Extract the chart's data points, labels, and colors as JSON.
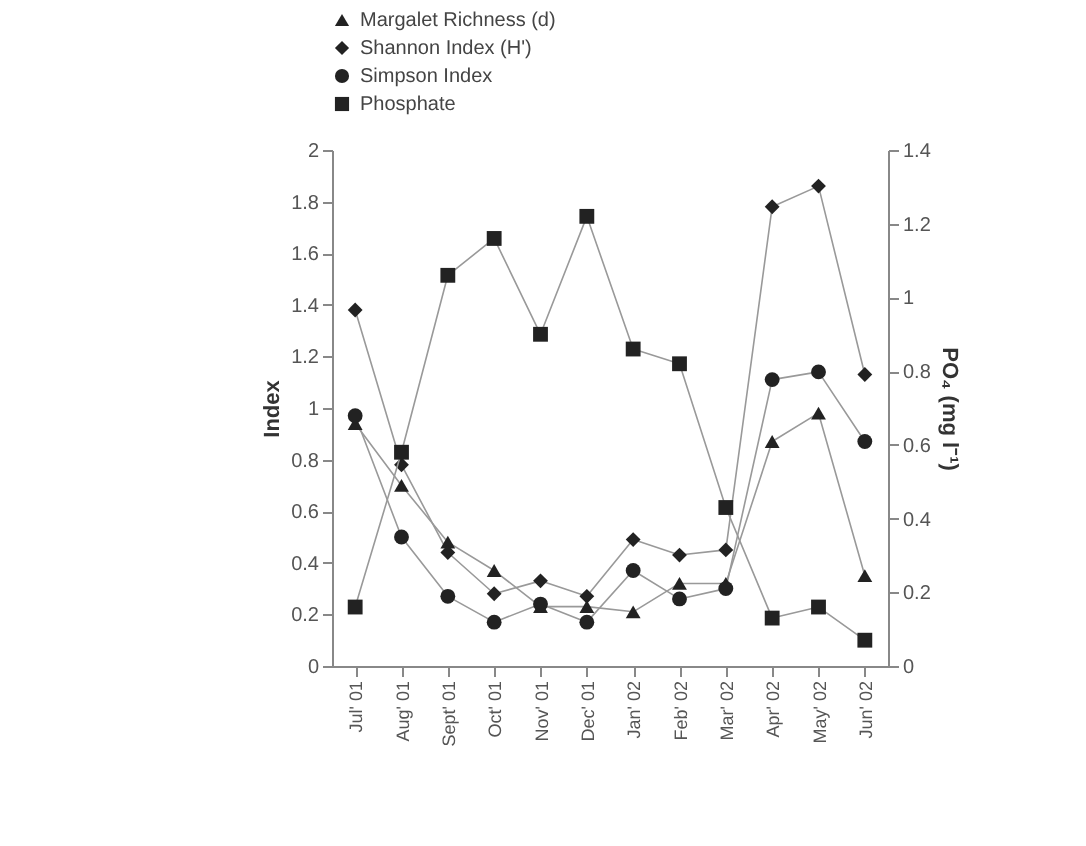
{
  "chart_data": {
    "type": "line",
    "categories": [
      "Jul' 01",
      "Aug' 01",
      "Sept' 01",
      "Oct' 01",
      "Nov' 01",
      "Dec' 01",
      "Jan' 02",
      "Feb' 02",
      "Mar' 02",
      "Apr' 02",
      "May' 02",
      "Jun' 02"
    ],
    "series": [
      {
        "name": "Margalet Richness (d)",
        "color": "#222222",
        "marker": "triangle",
        "values": [
          0.94,
          0.7,
          0.48,
          0.37,
          0.23,
          0.23,
          0.21,
          0.32,
          0.32,
          0.87,
          0.98,
          0.35
        ]
      },
      {
        "name": "Shannon Index (H')",
        "color": "#222222",
        "marker": "diamond",
        "values": [
          1.38,
          0.78,
          0.44,
          0.28,
          0.33,
          0.27,
          0.49,
          0.43,
          0.45,
          1.78,
          1.86,
          1.13
        ]
      },
      {
        "name": "Simpson Index",
        "color": "#222222",
        "marker": "circle",
        "values": [
          0.97,
          0.5,
          0.27,
          0.17,
          0.24,
          0.17,
          0.37,
          0.26,
          0.3,
          1.11,
          1.14,
          0.87
        ]
      },
      {
        "name": "Phosphate",
        "color": "#222222",
        "marker": "square",
        "axis": "y2",
        "values": [
          0.16,
          0.58,
          1.06,
          1.16,
          0.9,
          1.22,
          0.86,
          0.82,
          0.43,
          0.13,
          0.16,
          0.07
        ]
      }
    ],
    "ylabel": "Index",
    "y2label": "PO₄ (mg l⁻¹)",
    "ylim": [
      0,
      2
    ],
    "yticks": [
      0,
      0.2,
      0.4,
      0.6,
      0.8,
      1,
      1.2,
      1.4,
      1.6,
      1.8,
      2
    ],
    "y2lim": [
      0,
      1.4
    ],
    "y2ticks": [
      0,
      0.2,
      0.4,
      0.6,
      0.8,
      1,
      1.2,
      1.4
    ],
    "legend": "top",
    "grid": false
  }
}
